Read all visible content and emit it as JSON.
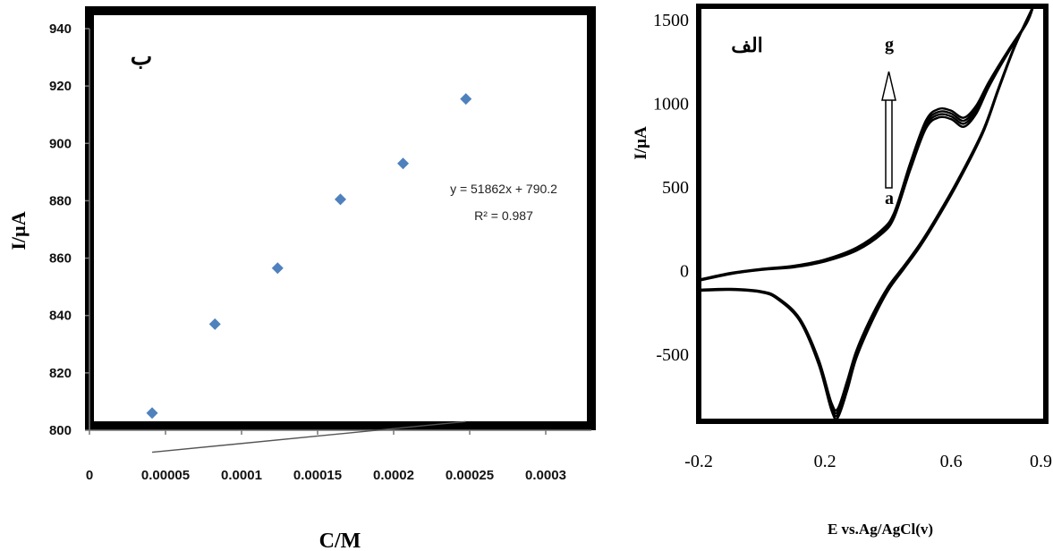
{
  "chart_data": [
    {
      "type": "scatter",
      "panel_label": "ب",
      "xlabel": "C/M",
      "ylabel": "I/µA",
      "x_ticks": [
        "0",
        "0.00005",
        "0.0001",
        "0.00015",
        "0.0002",
        "0.00025",
        "0.0003"
      ],
      "y_ticks": [
        "800",
        "820",
        "840",
        "860",
        "880",
        "900",
        "920",
        "940"
      ],
      "xlim": [
        0,
        0.00033
      ],
      "ylim": [
        800,
        940
      ],
      "points": [
        {
          "x": 4.12e-05,
          "y": 806
        },
        {
          "x": 8.25e-05,
          "y": 837
        },
        {
          "x": 0.0001237,
          "y": 856.5
        },
        {
          "x": 0.000165,
          "y": 880.5
        },
        {
          "x": 0.0002062,
          "y": 893
        },
        {
          "x": 0.0002475,
          "y": 915.5
        }
      ],
      "trendline": {
        "slope": 51862,
        "intercept": 790.2
      },
      "equation_text": "y = 51862x + 790.2",
      "r2_text": "R² = 0.987",
      "marker_color": "#4f81bd",
      "trendline_color": "#555555",
      "grid": false
    },
    {
      "type": "line",
      "panel_label": "الف",
      "xlabel": "E vs.Ag/AgCl(v)",
      "ylabel": "I/µA",
      "x_ticks": [
        "-0.2",
        "0.2",
        "0.6",
        "0.9"
      ],
      "y_ticks": [
        "-500",
        "0",
        "500",
        "1000",
        "1500"
      ],
      "xlim": [
        -0.2,
        0.9
      ],
      "ylim": [
        -900,
        1580
      ],
      "arrow_start_label": "a",
      "arrow_end_label": "g",
      "curve_color": "#000000",
      "grid": false,
      "series": [
        {
          "forward": [
            [
              -0.2,
              -60
            ],
            [
              -0.1,
              -20
            ],
            [
              0,
              5
            ],
            [
              0.1,
              20
            ],
            [
              0.2,
              55
            ],
            [
              0.3,
              120
            ],
            [
              0.38,
              220
            ],
            [
              0.42,
              320
            ],
            [
              0.47,
              600
            ],
            [
              0.52,
              850
            ],
            [
              0.56,
              915
            ],
            [
              0.6,
              905
            ],
            [
              0.64,
              860
            ],
            [
              0.68,
              940
            ],
            [
              0.72,
              1100
            ],
            [
              0.78,
              1300
            ],
            [
              0.84,
              1480
            ],
            [
              0.86,
              1580
            ]
          ],
          "reverse": [
            [
              0.86,
              1580
            ],
            [
              0.8,
              1330
            ],
            [
              0.75,
              1080
            ],
            [
              0.7,
              820
            ],
            [
              0.62,
              520
            ],
            [
              0.55,
              290
            ],
            [
              0.5,
              140
            ],
            [
              0.45,
              10
            ],
            [
              0.4,
              -120
            ],
            [
              0.35,
              -300
            ],
            [
              0.3,
              -520
            ],
            [
              0.27,
              -720
            ],
            [
              0.24,
              -880
            ],
            [
              0.22,
              -830
            ],
            [
              0.18,
              -560
            ],
            [
              0.12,
              -300
            ],
            [
              0.05,
              -170
            ],
            [
              0,
              -130
            ],
            [
              -0.1,
              -115
            ],
            [
              -0.2,
              -120
            ]
          ]
        },
        {
          "forward": [
            [
              -0.2,
              -58
            ],
            [
              -0.1,
              -18
            ],
            [
              0,
              7
            ],
            [
              0.1,
              23
            ],
            [
              0.2,
              59
            ],
            [
              0.3,
              126
            ],
            [
              0.38,
              228
            ],
            [
              0.42,
              330
            ],
            [
              0.47,
              614
            ],
            [
              0.52,
              866
            ],
            [
              0.56,
              932
            ],
            [
              0.6,
              922
            ],
            [
              0.64,
              878
            ],
            [
              0.68,
              956
            ],
            [
              0.72,
              1110
            ],
            [
              0.78,
              1305
            ],
            [
              0.84,
              1482
            ],
            [
              0.86,
              1580
            ]
          ],
          "reverse": [
            [
              0.86,
              1580
            ],
            [
              0.8,
              1333
            ],
            [
              0.75,
              1084
            ],
            [
              0.7,
              825
            ],
            [
              0.62,
              526
            ],
            [
              0.55,
              296
            ],
            [
              0.5,
              146
            ],
            [
              0.45,
              16
            ],
            [
              0.4,
              -112
            ],
            [
              0.35,
              -288
            ],
            [
              0.3,
              -505
            ],
            [
              0.27,
              -700
            ],
            [
              0.24,
              -862
            ],
            [
              0.22,
              -815
            ],
            [
              0.18,
              -550
            ],
            [
              0.12,
              -295
            ],
            [
              0.05,
              -167
            ],
            [
              0,
              -128
            ],
            [
              -0.1,
              -113
            ],
            [
              -0.2,
              -118
            ]
          ]
        },
        {
          "forward": [
            [
              -0.2,
              -56
            ],
            [
              -0.1,
              -16
            ],
            [
              0,
              9
            ],
            [
              0.1,
              26
            ],
            [
              0.2,
              63
            ],
            [
              0.3,
              132
            ],
            [
              0.38,
              236
            ],
            [
              0.42,
              340
            ],
            [
              0.47,
              628
            ],
            [
              0.52,
              882
            ],
            [
              0.56,
              949
            ],
            [
              0.6,
              939
            ],
            [
              0.64,
              896
            ],
            [
              0.68,
              972
            ],
            [
              0.72,
              1120
            ],
            [
              0.78,
              1310
            ],
            [
              0.84,
              1484
            ],
            [
              0.86,
              1580
            ]
          ],
          "reverse": [
            [
              0.86,
              1580
            ],
            [
              0.8,
              1336
            ],
            [
              0.75,
              1088
            ],
            [
              0.7,
              830
            ],
            [
              0.62,
              532
            ],
            [
              0.55,
              302
            ],
            [
              0.5,
              152
            ],
            [
              0.45,
              22
            ],
            [
              0.4,
              -104
            ],
            [
              0.35,
              -276
            ],
            [
              0.3,
              -490
            ],
            [
              0.27,
              -680
            ],
            [
              0.24,
              -844
            ],
            [
              0.22,
              -800
            ],
            [
              0.18,
              -540
            ],
            [
              0.12,
              -290
            ],
            [
              0.05,
              -164
            ],
            [
              0,
              -126
            ],
            [
              -0.1,
              -111
            ],
            [
              -0.2,
              -116
            ]
          ]
        },
        {
          "forward": [
            [
              -0.2,
              -54
            ],
            [
              -0.1,
              -14
            ],
            [
              0,
              11
            ],
            [
              0.1,
              29
            ],
            [
              0.2,
              67
            ],
            [
              0.3,
              138
            ],
            [
              0.38,
              244
            ],
            [
              0.42,
              350
            ],
            [
              0.47,
              642
            ],
            [
              0.52,
              898
            ],
            [
              0.56,
              966
            ],
            [
              0.6,
              956
            ],
            [
              0.64,
              914
            ],
            [
              0.68,
              988
            ],
            [
              0.72,
              1130
            ],
            [
              0.78,
              1315
            ],
            [
              0.84,
              1486
            ],
            [
              0.86,
              1580
            ]
          ],
          "reverse": [
            [
              0.86,
              1580
            ],
            [
              0.8,
              1339
            ],
            [
              0.75,
              1092
            ],
            [
              0.7,
              835
            ],
            [
              0.62,
              538
            ],
            [
              0.55,
              308
            ],
            [
              0.5,
              158
            ],
            [
              0.45,
              28
            ],
            [
              0.4,
              -96
            ],
            [
              0.35,
              -264
            ],
            [
              0.3,
              -475
            ],
            [
              0.27,
              -660
            ],
            [
              0.24,
              -826
            ],
            [
              0.22,
              -785
            ],
            [
              0.18,
              -530
            ],
            [
              0.12,
              -285
            ],
            [
              0.05,
              -161
            ],
            [
              0,
              -124
            ],
            [
              -0.1,
              -109
            ],
            [
              -0.2,
              -114
            ]
          ]
        }
      ]
    }
  ]
}
